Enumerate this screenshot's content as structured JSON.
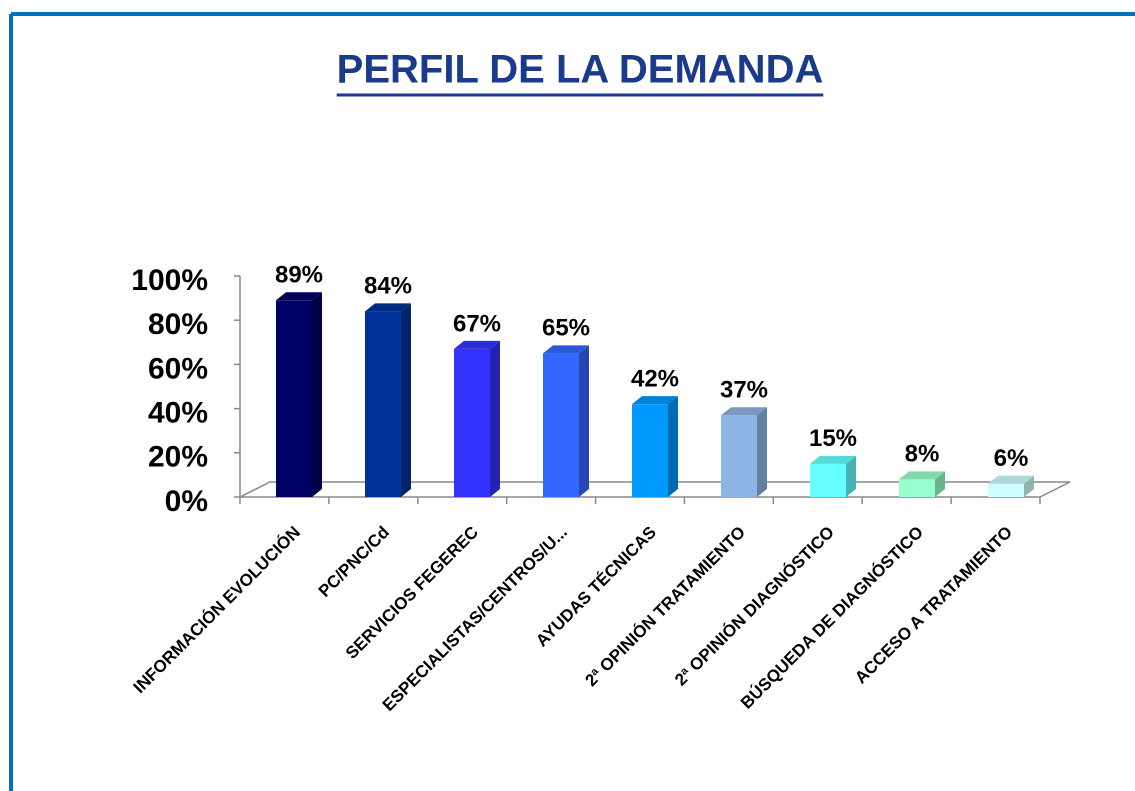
{
  "chart_data": {
    "type": "bar3d",
    "title": "PERFIL DE LA DEMANDA",
    "categories": [
      "INFORMACIÓN EVOLUCIÓN",
      "PC/PNC/Cd",
      "SERVICIOS FEGEREC",
      "ESPECIALISTAS/CENTROS/U...",
      "AYUDAS TÉCNICAS",
      "2ª OPINIÓN TRATAMIENTO",
      "2ª OPINIÓN DIAGNÓSTICO",
      "BÚSQUEDA DE DIAGNÓSTICO",
      "ACCESO A TRATAMIENTO"
    ],
    "values": [
      89,
      84,
      67,
      65,
      42,
      37,
      15,
      8,
      6
    ],
    "value_labels": [
      "89%",
      "84%",
      "67%",
      "65%",
      "42%",
      "37%",
      "15%",
      "8%",
      "6%"
    ],
    "colors": [
      "#000066",
      "#003399",
      "#3333ff",
      "#3366ff",
      "#0099ff",
      "#8eb4e3",
      "#66ffff",
      "#99ffcc",
      "#ccffff"
    ],
    "ylim": [
      0,
      100
    ],
    "yticks": [
      {
        "value": 0,
        "label": "0%"
      },
      {
        "value": 20,
        "label": "20%"
      },
      {
        "value": 40,
        "label": "40%"
      },
      {
        "value": 60,
        "label": "60%"
      },
      {
        "value": 80,
        "label": "80%"
      },
      {
        "value": 100,
        "label": "100%"
      }
    ]
  }
}
